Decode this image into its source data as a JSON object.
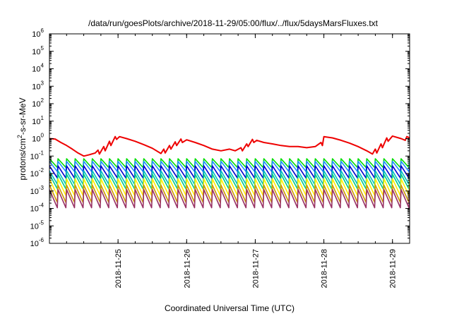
{
  "chart_data": {
    "type": "line",
    "title": "/data/run/goesPlots/archive/2018-11-29/05:00/flux/../flux/5daysMarsFluxes.txt",
    "xlabel": "Coordinated Universal Time (UTC)",
    "ylabel": "protons/cm2-s-sr-MeV",
    "ylabel_parts": {
      "base": "protons/cm",
      "sup": "2",
      "rest": "-s-sr-MeV"
    },
    "y_scale": "log",
    "ylim": [
      1e-06,
      1000000.0
    ],
    "y_ticks": [
      {
        "base": "10",
        "exp": "-6",
        "value": 1e-06
      },
      {
        "base": "10",
        "exp": "-5",
        "value": 1e-05
      },
      {
        "base": "10",
        "exp": "-4",
        "value": 0.0001
      },
      {
        "base": "10",
        "exp": "-3",
        "value": 0.001
      },
      {
        "base": "10",
        "exp": "-2",
        "value": 0.01
      },
      {
        "base": "10",
        "exp": "-1",
        "value": 0.1
      },
      {
        "base": "10",
        "exp": "0",
        "value": 1
      },
      {
        "base": "10",
        "exp": "1",
        "value": 10
      },
      {
        "base": "10",
        "exp": "2",
        "value": 100
      },
      {
        "base": "10",
        "exp": "3",
        "value": 1000
      },
      {
        "base": "10",
        "exp": "4",
        "value": 10000
      },
      {
        "base": "10",
        "exp": "5",
        "value": 100000
      },
      {
        "base": "10",
        "exp": "6",
        "value": 1000000
      }
    ],
    "xlim": [
      "2018-11-24 00:00",
      "2018-11-29 06:00"
    ],
    "x_ticks": [
      "2018-11-25",
      "2018-11-26",
      "2018-11-27",
      "2018-11-28",
      "2018-11-29"
    ],
    "grid": false,
    "legend": "none",
    "series": [
      {
        "color": "#ee0000",
        "points": [
          [
            "2018-11-24 00:00",
            1.0
          ],
          [
            "2018-11-24 02:00",
            0.95
          ],
          [
            "2018-11-24 04:00",
            0.6
          ],
          [
            "2018-11-24 06:00",
            0.4
          ],
          [
            "2018-11-24 08:00",
            0.25
          ],
          [
            "2018-11-24 10:00",
            0.15
          ],
          [
            "2018-11-24 12:00",
            0.1
          ],
          [
            "2018-11-24 14:00",
            0.12
          ],
          [
            "2018-11-24 16:00",
            0.15
          ],
          [
            "2018-11-24 17:00",
            0.22
          ],
          [
            "2018-11-24 17:30",
            0.13
          ],
          [
            "2018-11-24 19:00",
            0.35
          ],
          [
            "2018-11-24 19:30",
            0.2
          ],
          [
            "2018-11-24 21:00",
            0.7
          ],
          [
            "2018-11-24 21:30",
            0.4
          ],
          [
            "2018-11-24 23:00",
            1.3
          ],
          [
            "2018-11-24 23:30",
            0.9
          ],
          [
            "2018-11-25 00:30",
            1.3
          ],
          [
            "2018-11-25 03:00",
            1.0
          ],
          [
            "2018-11-25 06:00",
            0.7
          ],
          [
            "2018-11-25 09:00",
            0.45
          ],
          [
            "2018-11-25 12:00",
            0.28
          ],
          [
            "2018-11-25 15:00",
            0.14
          ],
          [
            "2018-11-25 16:00",
            0.25
          ],
          [
            "2018-11-25 16:30",
            0.15
          ],
          [
            "2018-11-25 18:00",
            0.4
          ],
          [
            "2018-11-25 18:30",
            0.25
          ],
          [
            "2018-11-25 20:00",
            0.65
          ],
          [
            "2018-11-25 20:30",
            0.4
          ],
          [
            "2018-11-25 22:00",
            0.95
          ],
          [
            "2018-11-25 22:30",
            0.6
          ],
          [
            "2018-11-26 00:00",
            0.85
          ],
          [
            "2018-11-26 03:00",
            0.6
          ],
          [
            "2018-11-26 06:00",
            0.4
          ],
          [
            "2018-11-26 09:00",
            0.25
          ],
          [
            "2018-11-26 12:00",
            0.2
          ],
          [
            "2018-11-26 15:00",
            0.25
          ],
          [
            "2018-11-26 17:00",
            0.2
          ],
          [
            "2018-11-26 19:00",
            0.3
          ],
          [
            "2018-11-26 19:30",
            0.2
          ],
          [
            "2018-11-26 21:00",
            0.5
          ],
          [
            "2018-11-26 21:30",
            0.35
          ],
          [
            "2018-11-26 23:00",
            0.9
          ],
          [
            "2018-11-26 23:30",
            0.6
          ],
          [
            "2018-11-27 00:30",
            0.8
          ],
          [
            "2018-11-27 03:00",
            0.6
          ],
          [
            "2018-11-27 06:00",
            0.5
          ],
          [
            "2018-11-27 09:00",
            0.4
          ],
          [
            "2018-11-27 12:00",
            0.35
          ],
          [
            "2018-11-27 15:00",
            0.35
          ],
          [
            "2018-11-27 18:00",
            0.3
          ],
          [
            "2018-11-27 21:00",
            0.35
          ],
          [
            "2018-11-27 23:00",
            0.6
          ],
          [
            "2018-11-27 23:30",
            0.4
          ],
          [
            "2018-11-28 00:00",
            1.3
          ],
          [
            "2018-11-28 03:00",
            1.1
          ],
          [
            "2018-11-28 06:00",
            0.8
          ],
          [
            "2018-11-28 09:00",
            0.55
          ],
          [
            "2018-11-28 12:00",
            0.35
          ],
          [
            "2018-11-28 15:00",
            0.2
          ],
          [
            "2018-11-28 17:00",
            0.13
          ],
          [
            "2018-11-28 18:00",
            0.25
          ],
          [
            "2018-11-28 18:30",
            0.15
          ],
          [
            "2018-11-28 20:00",
            0.5
          ],
          [
            "2018-11-28 20:30",
            0.3
          ],
          [
            "2018-11-28 22:00",
            1.1
          ],
          [
            "2018-11-28 22:30",
            0.7
          ],
          [
            "2018-11-29 00:00",
            1.4
          ],
          [
            "2018-11-29 03:00",
            1.0
          ],
          [
            "2018-11-29 04:30",
            0.8
          ],
          [
            "2018-11-29 05:00",
            1.3
          ],
          [
            "2018-11-29 06:00",
            1.1
          ]
        ]
      },
      {
        "color": "#00dd00",
        "baseline": 0.022,
        "amplitude": 3.2
      },
      {
        "color": "#1e90ff",
        "baseline": 0.013,
        "amplitude": 3.8
      },
      {
        "color": "#0000cc",
        "baseline": 0.0055,
        "amplitude": 5.0
      },
      {
        "color": "#00bfbf",
        "baseline": 0.0024,
        "amplitude": 6.0
      },
      {
        "color": "#00cc88",
        "baseline": 0.0013,
        "amplitude": 7.0
      },
      {
        "color": "#ffee00",
        "baseline": 0.00055,
        "amplitude": 9.0
      },
      {
        "color": "#cc9900",
        "baseline": 0.00022,
        "amplitude": 10.0
      },
      {
        "color": "#993366",
        "baseline": 0.00011,
        "amplitude": 11.0
      }
    ]
  }
}
